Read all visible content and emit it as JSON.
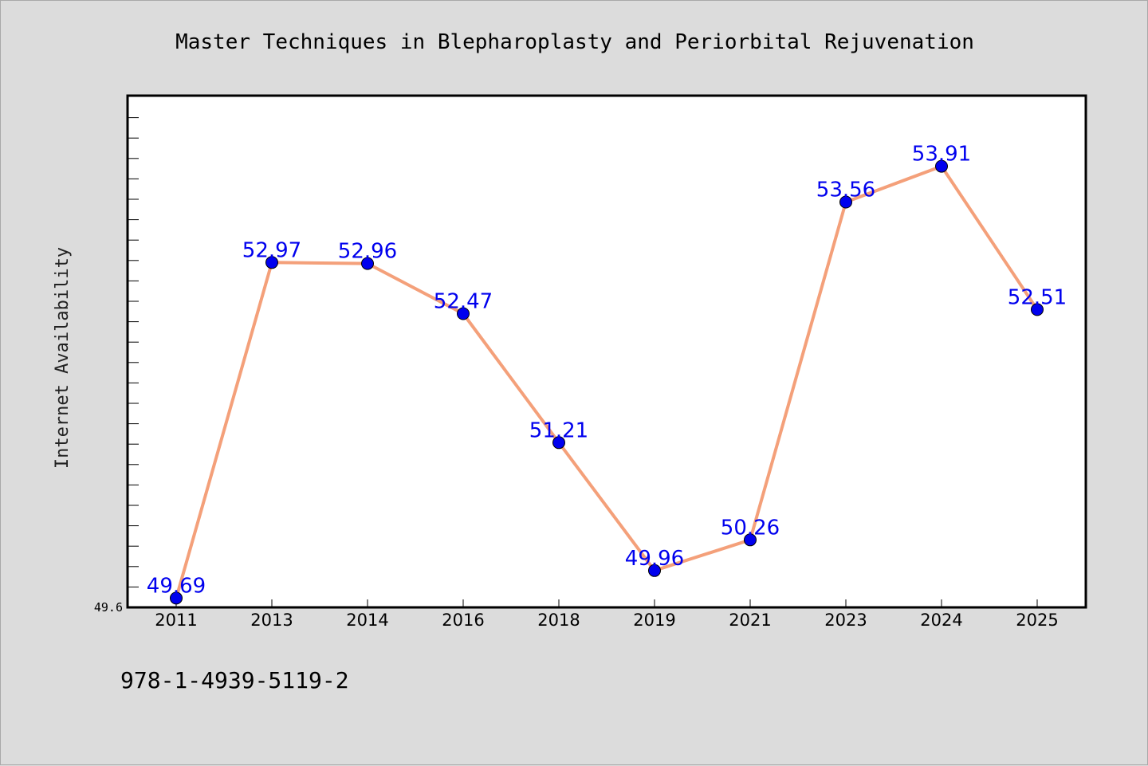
{
  "chart_data": {
    "type": "line",
    "title": "Master Techniques in Blepharoplasty and Periorbital Rejuvenation",
    "xlabel": "",
    "ylabel": "Internet Availability",
    "categories": [
      "2011",
      "2013",
      "2014",
      "2016",
      "2018",
      "2019",
      "2021",
      "2023",
      "2024",
      "2025"
    ],
    "series": [
      {
        "values": [
          49.69,
          52.97,
          52.96,
          52.47,
          51.21,
          49.96,
          50.26,
          53.56,
          53.91,
          52.51
        ],
        "labels": [
          "49.69",
          "52.97",
          "52.96",
          "52.47",
          "51.21",
          "49.96",
          "50.26",
          "53.56",
          "53.91",
          "52.51"
        ],
        "color": "#f4a07a",
        "marker_color": "#0000ee"
      }
    ],
    "ylim": [
      49.6,
      54.6
    ],
    "y_tick_labels": [
      "49.6"
    ],
    "grid": false,
    "legend": "none"
  },
  "footer": {
    "isbn": "978-1-4939-5119-2"
  },
  "colors": {
    "background": "#dcdcdc",
    "plot_background": "#ffffff",
    "line": "#f4a07a",
    "marker": "#0000ee",
    "label": "#0000ee"
  }
}
